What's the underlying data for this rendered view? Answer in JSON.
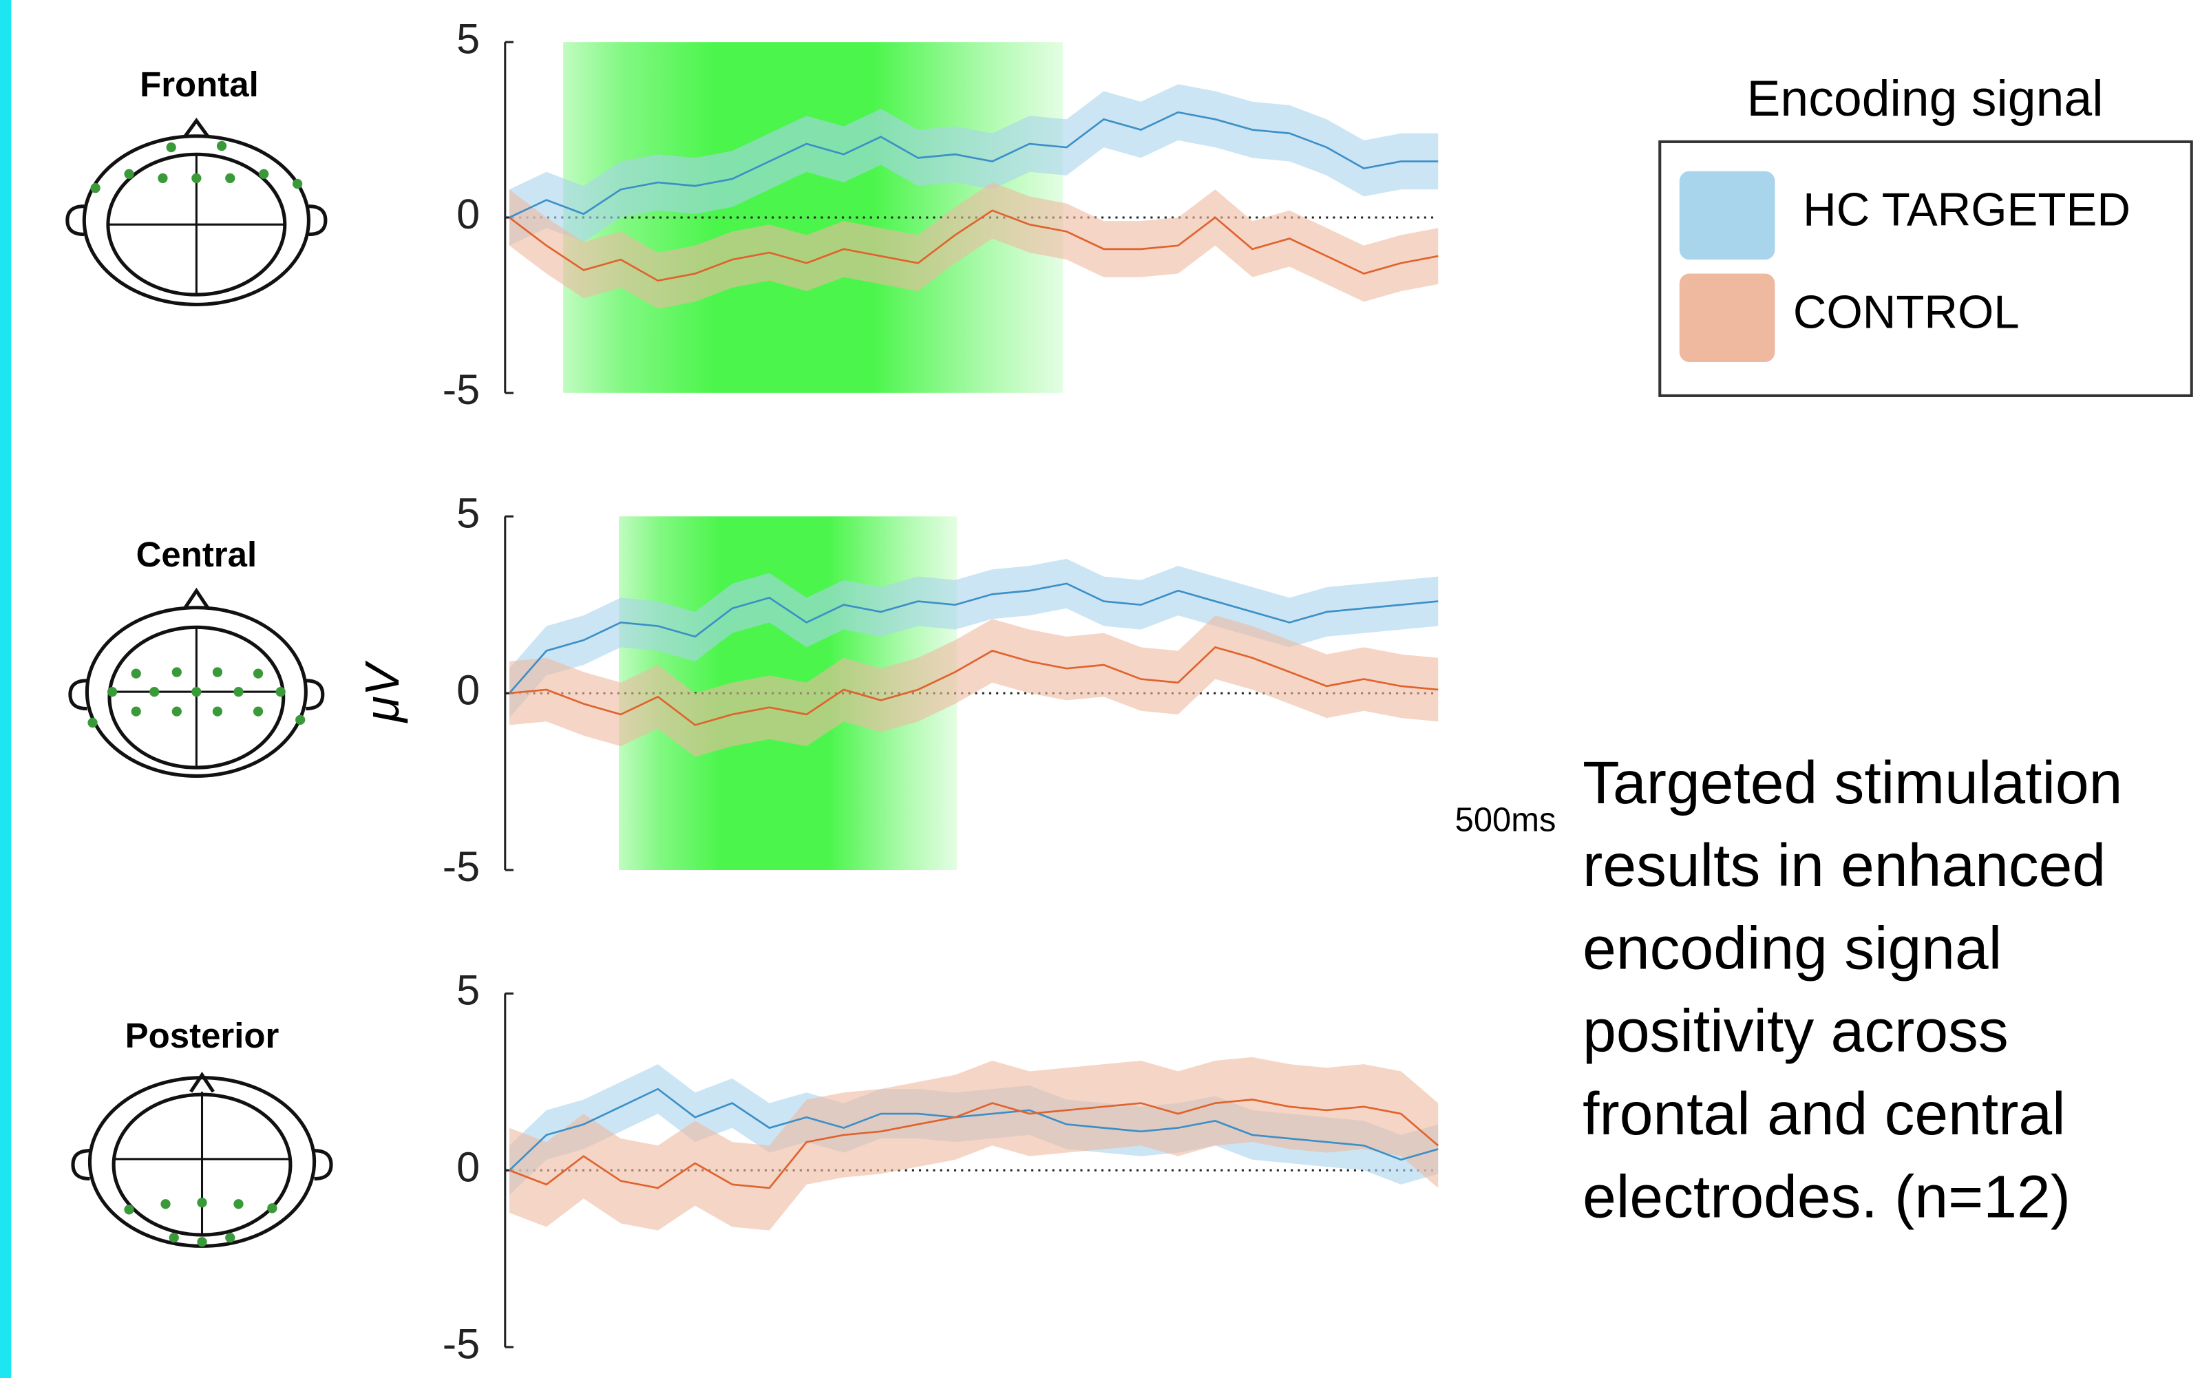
{
  "chart_data": [
    {
      "type": "line",
      "title": "Frontal",
      "xlim": [
        0,
        500
      ],
      "ylim": [
        -5,
        5
      ],
      "yticks": [
        5,
        0,
        -5
      ],
      "highlight": [
        29,
        298
      ],
      "highlight_color": "#4cf54c",
      "x": [
        0,
        20,
        40,
        60,
        80,
        100,
        120,
        140,
        160,
        180,
        200,
        220,
        240,
        260,
        280,
        300,
        320,
        340,
        360,
        380,
        400,
        420,
        440,
        460,
        480,
        500
      ],
      "series": [
        {
          "name": "HC TARGETED",
          "color": "#3b8fc7",
          "band_color": "#a8d4ec",
          "error": 0.8,
          "values": [
            0,
            0.5,
            0.1,
            0.8,
            1.0,
            0.9,
            1.1,
            1.6,
            2.1,
            1.8,
            2.3,
            1.7,
            1.8,
            1.6,
            2.1,
            2.0,
            2.8,
            2.5,
            3.0,
            2.8,
            2.5,
            2.4,
            2.0,
            1.4,
            1.6,
            1.6
          ]
        },
        {
          "name": "CONTROL",
          "color": "#e0622c",
          "band_color": "#efb9a0",
          "error": 0.8,
          "values": [
            0,
            -0.8,
            -1.5,
            -1.2,
            -1.8,
            -1.6,
            -1.2,
            -1.0,
            -1.3,
            -0.9,
            -1.1,
            -1.3,
            -0.5,
            0.2,
            -0.2,
            -0.4,
            -0.9,
            -0.9,
            -0.8,
            0,
            -0.9,
            -0.6,
            -1.1,
            -1.6,
            -1.3,
            -1.1
          ]
        }
      ]
    },
    {
      "type": "line",
      "title": "Central",
      "ylabel": "μV",
      "annotation": "500ms",
      "xlim": [
        0,
        500
      ],
      "ylim": [
        -5,
        5
      ],
      "yticks": [
        5,
        0,
        -5
      ],
      "highlight": [
        59,
        241
      ],
      "highlight_color": "#4cf54c",
      "x": [
        0,
        20,
        40,
        60,
        80,
        100,
        120,
        140,
        160,
        180,
        200,
        220,
        240,
        260,
        280,
        300,
        320,
        340,
        360,
        380,
        400,
        420,
        440,
        460,
        480,
        500
      ],
      "series": [
        {
          "name": "HC TARGETED",
          "color": "#3b8fc7",
          "band_color": "#a8d4ec",
          "error": 0.7,
          "values": [
            0,
            1.2,
            1.5,
            2.0,
            1.9,
            1.6,
            2.4,
            2.7,
            2.0,
            2.5,
            2.3,
            2.6,
            2.5,
            2.8,
            2.9,
            3.1,
            2.6,
            2.5,
            2.9,
            2.6,
            2.3,
            2.0,
            2.3,
            2.4,
            2.5,
            2.6
          ]
        },
        {
          "name": "CONTROL",
          "color": "#e0622c",
          "band_color": "#efb9a0",
          "error": 0.9,
          "values": [
            0,
            0.1,
            -0.3,
            -0.6,
            -0.1,
            -0.9,
            -0.6,
            -0.4,
            -0.6,
            0.1,
            -0.2,
            0.1,
            0.6,
            1.2,
            0.9,
            0.7,
            0.8,
            0.4,
            0.3,
            1.3,
            1.0,
            0.6,
            0.2,
            0.4,
            0.2,
            0.1
          ]
        }
      ]
    },
    {
      "type": "line",
      "title": "Posterior",
      "xlim": [
        0,
        500
      ],
      "ylim": [
        -5,
        5
      ],
      "yticks": [
        5,
        0,
        -5
      ],
      "x": [
        0,
        20,
        40,
        60,
        80,
        100,
        120,
        140,
        160,
        180,
        200,
        220,
        240,
        260,
        280,
        300,
        320,
        340,
        360,
        380,
        400,
        420,
        440,
        460,
        480,
        500
      ],
      "series": [
        {
          "name": "HC TARGETED",
          "color": "#3b8fc7",
          "band_color": "#a8d4ec",
          "error": 0.7,
          "values": [
            0,
            1.0,
            1.3,
            1.8,
            2.3,
            1.5,
            1.9,
            1.2,
            1.5,
            1.2,
            1.6,
            1.6,
            1.5,
            1.6,
            1.7,
            1.3,
            1.2,
            1.1,
            1.2,
            1.4,
            1.0,
            0.9,
            0.8,
            0.7,
            0.3,
            0.6
          ]
        },
        {
          "name": "CONTROL",
          "color": "#e0622c",
          "band_color": "#efb9a0",
          "error": 1.2,
          "values": [
            0,
            -0.4,
            0.4,
            -0.3,
            -0.5,
            0.2,
            -0.4,
            -0.5,
            0.8,
            1.0,
            1.1,
            1.3,
            1.5,
            1.9,
            1.6,
            1.7,
            1.8,
            1.9,
            1.6,
            1.9,
            2.0,
            1.8,
            1.7,
            1.8,
            1.6,
            0.7
          ]
        }
      ]
    }
  ],
  "legend_title": "Encoding signal",
  "caption": [
    "Targeted stimulation",
    "results in enhanced",
    "encoding signal",
    "positivity across",
    "frontal and central",
    "electrodes. (n=12)"
  ]
}
